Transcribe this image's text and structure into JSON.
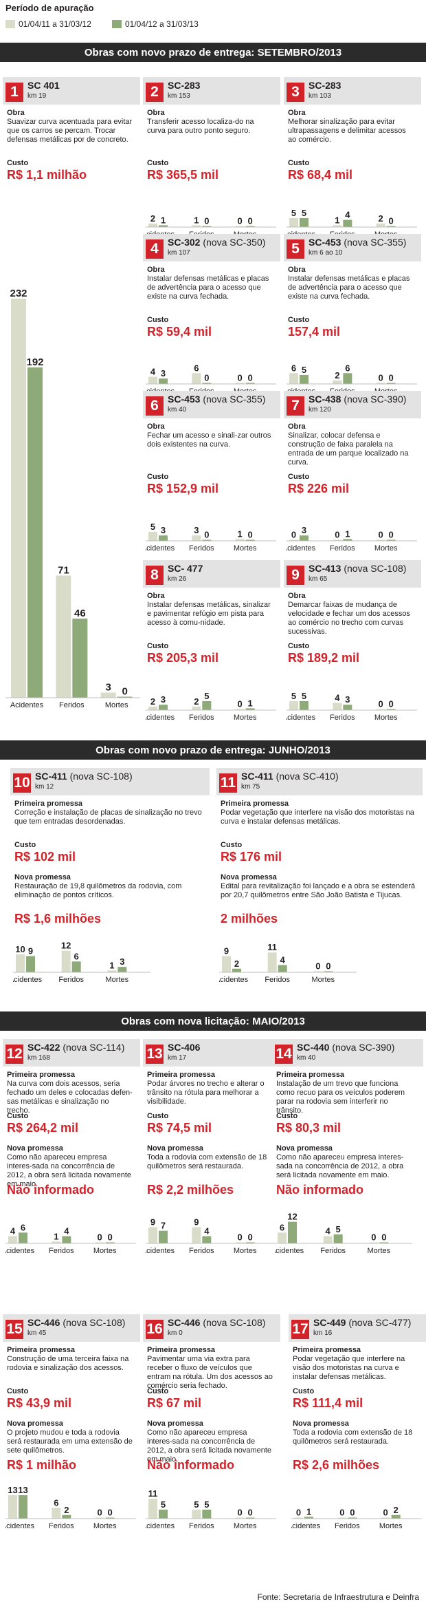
{
  "legend": {
    "title": "Período de apuração",
    "items": [
      {
        "label": "01/04/11 a 31/03/12",
        "color": "#d9dcc9"
      },
      {
        "label": "01/04/12 a 31/03/13",
        "color": "#8daa78"
      }
    ]
  },
  "sections": [
    "Obras com novo prazo de entrega: SETEMBRO/2013",
    "Obras com novo prazo de entrega: JUNHO/2013",
    "Obras com nova licitação: MAIO/2013"
  ],
  "labels": {
    "obra": "Obra",
    "custo": "Custo",
    "primeira_promessa": "Primeira promessa",
    "nova_promessa": "Nova promessa",
    "accidents": "Acidentes",
    "injured": "Feridos",
    "deaths": "Mortes"
  },
  "colors": {
    "series1": "#d9dcc9",
    "series2": "#8daa78",
    "accent": "#d2232a"
  },
  "source": "Fonte: Secretaria de Infraestrutura e Deinfra",
  "panels": [
    {
      "num": "1",
      "road": "SC 401",
      "alt": "",
      "km": "km 19",
      "obra": "Suavizar curva acentuada para evitar que os carros se percam. Trocar defensas metálicas por de concreto.",
      "custo": "R$ 1,1 milhão"
    },
    {
      "num": "2",
      "road": "SC-283",
      "alt": "",
      "km": "km 153",
      "obra": "Transferir acesso localiza-do na curva para outro ponto seguro.",
      "custo": "R$ 365,5 mil"
    },
    {
      "num": "3",
      "road": "SC-283",
      "alt": "",
      "km": "km 103",
      "obra": "Melhorar sinalização para evitar ultrapassagens e delimitar acessos ao comércio.",
      "custo": "R$ 68,4 mil"
    },
    {
      "num": "4",
      "road": "SC-302",
      "alt": "(nova SC-350)",
      "km": "km 107",
      "obra": "Instalar defensas metálicas e placas de advertência para o acesso que existe na curva fechada.",
      "custo": "R$ 59,4 mil"
    },
    {
      "num": "5",
      "road": "SC-453",
      "alt": "(nova SC-355)",
      "km": "km 6 ao 10",
      "obra": "Instalar defensas metálicas e placas de advertência para o acesso que existe na curva fechada.",
      "custo": "157,4 mil"
    },
    {
      "num": "6",
      "road": "SC-453",
      "alt": "(nova SC-355)",
      "km": "km 40",
      "obra": "Fechar um acesso e sinali-zar outros dois existentes na curva.",
      "custo": "R$ 152,9 mil"
    },
    {
      "num": "7",
      "road": "SC-438",
      "alt": "(nova SC-390)",
      "km": "km 120",
      "obra": "Sinalizar, colocar defensa e construção de faixa paralela na entrada de um parque localizado na curva.",
      "custo": "R$ 226 mil"
    },
    {
      "num": "8",
      "road": "SC- 477",
      "alt": "",
      "km": "km 26",
      "obra": "Instalar defensas metálicas, sinalizar e pavimentar refúgio em pista para acesso à comu-nidade.",
      "custo": "R$ 205,3 mil"
    },
    {
      "num": "9",
      "road": "SC-413",
      "alt": "(nova SC-108)",
      "km": "km 65",
      "obra": "Demarcar faixas de mudança de velocidade e fechar um dos acessos ao comércio no trecho com curvas sucessivas.",
      "custo": "R$ 189,2 mil"
    },
    {
      "num": "10",
      "road": "SC-411",
      "alt": "(nova SC-108)",
      "km": "km 12",
      "obra": "Correção e instalação de placas de sinalização no trevo que tem entradas desordenadas.",
      "custo": "R$ 102 mil",
      "nova": "Restauração de 19,8 quilômetros da rodovia, com eliminação de pontos críticos.",
      "custo2": "R$ 1,6 milhões"
    },
    {
      "num": "11",
      "road": "SC-411",
      "alt": "(nova SC-410)",
      "km": "km 75",
      "obra": "Podar vegetação que interfere na visão dos motoristas na curva e instalar defensas metálicas.",
      "custo": "R$ 176 mil",
      "nova": "Edital para revitalização foi lançado e a obra se estenderá por 20,7 quilômetros entre São João Batista e Tijucas.",
      "custo2": "2 milhões"
    },
    {
      "num": "12",
      "road": "SC-422",
      "alt": "(nova SC-114)",
      "km": "km 168",
      "obra": "Na curva com dois acessos, seria fechado um deles e colocadas defen-sas metálicas e sinalização no trecho.",
      "custo": "R$ 264,2 mil",
      "nova": "Como não apareceu empresa interes-sada na concorrência de 2012, a obra será licitada novamente em maio.",
      "custo2": "Não informado"
    },
    {
      "num": "13",
      "road": "SC-406",
      "alt": "",
      "km": "km 17",
      "obra": "Podar árvores no trecho e alterar o trânsito na rótula para melhorar a visibilidade.",
      "custo": "R$ 74,5 mil",
      "nova": "Toda a rodovia com extensão de 18 quilômetros será restaurada.",
      "custo2": "R$ 2,2 milhões"
    },
    {
      "num": "14",
      "road": "SC-440",
      "alt": "(nova SC-390)",
      "km": "km 40",
      "obra": "Instalação de um trevo que funciona como recuo para os veículos poderem parar na rodovia sem interferir no trânsito.",
      "custo": "R$ 80,3 mil",
      "nova": "Como não apareceu empresa interes-sada na concorrência de 2012, a obra será licitada novamente em maio.",
      "custo2": "Não informado"
    },
    {
      "num": "15",
      "road": "SC-446",
      "alt": "(nova SC-108)",
      "km": "km 45",
      "obra": "Construção de uma terceira faixa na rodovia e sinalização dos acessos.",
      "custo": "R$ 43,9 mil",
      "nova": "O projeto mudou e toda a rodovia será restaurada em uma extensão de sete quilômetros.",
      "custo2": "R$ 1 milhão"
    },
    {
      "num": "16",
      "road": "SC-446",
      "alt": "(nova SC-108)",
      "km": "km 0",
      "obra": "Pavimentar uma via extra para receber o fluxo de veículos que entram na rótula. Um dos acessos ao comércio seria fechado.",
      "custo": "R$ 67 mil",
      "nova": "Como não apareceu empresa interes-sada na concorrência de 2012, a obra será licitada novamente em maio.",
      "custo2": "Não informado"
    },
    {
      "num": "17",
      "road": "SC-449",
      "alt": "(nova SC-477)",
      "km": "km 16",
      "obra": "Podar vegetação que interfere na visão dos motoristas na curva e instalar defensas metálicas.",
      "custo": "R$ 111,4 mil",
      "nova": "Toda a rodovia com extensão de 18 quilômetros será restaurada.",
      "custo2": "R$ 2,6 milhões"
    }
  ],
  "chart_data": [
    {
      "panel": "1",
      "type": "bar",
      "categories": [
        "Acidentes",
        "Feridos",
        "Mortes"
      ],
      "series": [
        {
          "name": "01/04/11 a 31/03/12",
          "values": [
            232,
            71,
            3
          ]
        },
        {
          "name": "01/04/12 a 31/03/13",
          "values": [
            192,
            46,
            0
          ]
        }
      ]
    },
    {
      "panel": "2",
      "type": "bar",
      "categories": [
        "Acidentes",
        "Feridos",
        "Mortes"
      ],
      "series": [
        {
          "name": "01/04/11 a 31/03/12",
          "values": [
            2,
            1,
            0
          ]
        },
        {
          "name": "01/04/12 a 31/03/13",
          "values": [
            1,
            0,
            0
          ]
        }
      ]
    },
    {
      "panel": "3",
      "type": "bar",
      "categories": [
        "Acidentes",
        "Feridos",
        "Mortes"
      ],
      "series": [
        {
          "name": "01/04/11 a 31/03/12",
          "values": [
            5,
            1,
            2
          ]
        },
        {
          "name": "01/04/12 a 31/03/13",
          "values": [
            5,
            4,
            0
          ]
        }
      ]
    },
    {
      "panel": "4",
      "type": "bar",
      "categories": [
        "Acidentes",
        "Feridos",
        "Mortes"
      ],
      "series": [
        {
          "name": "01/04/11 a 31/03/12",
          "values": [
            4,
            6,
            0
          ]
        },
        {
          "name": "01/04/12 a 31/03/13",
          "values": [
            3,
            0,
            0
          ]
        }
      ]
    },
    {
      "panel": "5",
      "type": "bar",
      "categories": [
        "Acidentes",
        "Feridos",
        "Mortes"
      ],
      "series": [
        {
          "name": "01/04/11 a 31/03/12",
          "values": [
            6,
            2,
            0
          ]
        },
        {
          "name": "01/04/12 a 31/03/13",
          "values": [
            5,
            6,
            0
          ]
        }
      ]
    },
    {
      "panel": "6",
      "type": "bar",
      "categories": [
        "Acidentes",
        "Feridos",
        "Mortes"
      ],
      "series": [
        {
          "name": "01/04/11 a 31/03/12",
          "values": [
            5,
            3,
            1
          ]
        },
        {
          "name": "01/04/12 a 31/03/13",
          "values": [
            3,
            0,
            0
          ]
        }
      ]
    },
    {
      "panel": "7",
      "type": "bar",
      "categories": [
        "Acidentes",
        "Feridos",
        "Mortes"
      ],
      "series": [
        {
          "name": "01/04/11 a 31/03/12",
          "values": [
            0,
            0,
            0
          ]
        },
        {
          "name": "01/04/12 a 31/03/13",
          "values": [
            3,
            1,
            0
          ]
        }
      ]
    },
    {
      "panel": "8",
      "type": "bar",
      "categories": [
        "Acidentes",
        "Feridos",
        "Mortes"
      ],
      "series": [
        {
          "name": "01/04/11 a 31/03/12",
          "values": [
            2,
            2,
            0
          ]
        },
        {
          "name": "01/04/12 a 31/03/13",
          "values": [
            3,
            5,
            1
          ]
        }
      ]
    },
    {
      "panel": "9",
      "type": "bar",
      "categories": [
        "Acidentes",
        "Feridos",
        "Mortes"
      ],
      "series": [
        {
          "name": "01/04/11 a 31/03/12",
          "values": [
            5,
            4,
            0
          ]
        },
        {
          "name": "01/04/12 a 31/03/13",
          "values": [
            5,
            3,
            0
          ]
        }
      ]
    },
    {
      "panel": "10",
      "type": "bar",
      "categories": [
        "Acidentes",
        "Feridos",
        "Mortes"
      ],
      "series": [
        {
          "name": "01/04/11 a 31/03/12",
          "values": [
            10,
            12,
            1
          ]
        },
        {
          "name": "01/04/12 a 31/03/13",
          "values": [
            9,
            6,
            3
          ]
        }
      ]
    },
    {
      "panel": "11",
      "type": "bar",
      "categories": [
        "Acidentes",
        "Feridos",
        "Mortes"
      ],
      "series": [
        {
          "name": "01/04/11 a 31/03/12",
          "values": [
            9,
            11,
            0
          ]
        },
        {
          "name": "01/04/12 a 31/03/13",
          "values": [
            2,
            4,
            0
          ]
        }
      ]
    },
    {
      "panel": "12",
      "type": "bar",
      "categories": [
        "Acidentes",
        "Feridos",
        "Mortes"
      ],
      "series": [
        {
          "name": "01/04/11 a 31/03/12",
          "values": [
            4,
            1,
            0
          ]
        },
        {
          "name": "01/04/12 a 31/03/13",
          "values": [
            6,
            4,
            0
          ]
        }
      ]
    },
    {
      "panel": "13",
      "type": "bar",
      "categories": [
        "Acidentes",
        "Feridos",
        "Mortes"
      ],
      "series": [
        {
          "name": "01/04/11 a 31/03/12",
          "values": [
            9,
            9,
            0
          ]
        },
        {
          "name": "01/04/12 a 31/03/13",
          "values": [
            7,
            4,
            0
          ]
        }
      ]
    },
    {
      "panel": "14",
      "type": "bar",
      "categories": [
        "Acidentes",
        "Feridos",
        "Mortes"
      ],
      "series": [
        {
          "name": "01/04/11 a 31/03/12",
          "values": [
            6,
            4,
            0
          ]
        },
        {
          "name": "01/04/12 a 31/03/13",
          "values": [
            12,
            5,
            0
          ]
        }
      ]
    },
    {
      "panel": "15",
      "type": "bar",
      "categories": [
        "Acidentes",
        "Feridos",
        "Mortes"
      ],
      "series": [
        {
          "name": "01/04/11 a 31/03/12",
          "values": [
            13,
            6,
            0
          ]
        },
        {
          "name": "01/04/12 a 31/03/13",
          "values": [
            13,
            2,
            0
          ]
        }
      ]
    },
    {
      "panel": "16",
      "type": "bar",
      "categories": [
        "Acidentes",
        "Feridos",
        "Mortes"
      ],
      "series": [
        {
          "name": "01/04/11 a 31/03/12",
          "values": [
            11,
            5,
            0
          ]
        },
        {
          "name": "01/04/12 a 31/03/13",
          "values": [
            5,
            5,
            0
          ]
        }
      ]
    },
    {
      "panel": "17",
      "type": "bar",
      "categories": [
        "Acidentes",
        "Feridos",
        "Mortes"
      ],
      "series": [
        {
          "name": "01/04/11 a 31/03/12",
          "values": [
            0,
            0,
            0
          ]
        },
        {
          "name": "01/04/12 a 31/03/13",
          "values": [
            1,
            0,
            2
          ]
        }
      ]
    }
  ]
}
